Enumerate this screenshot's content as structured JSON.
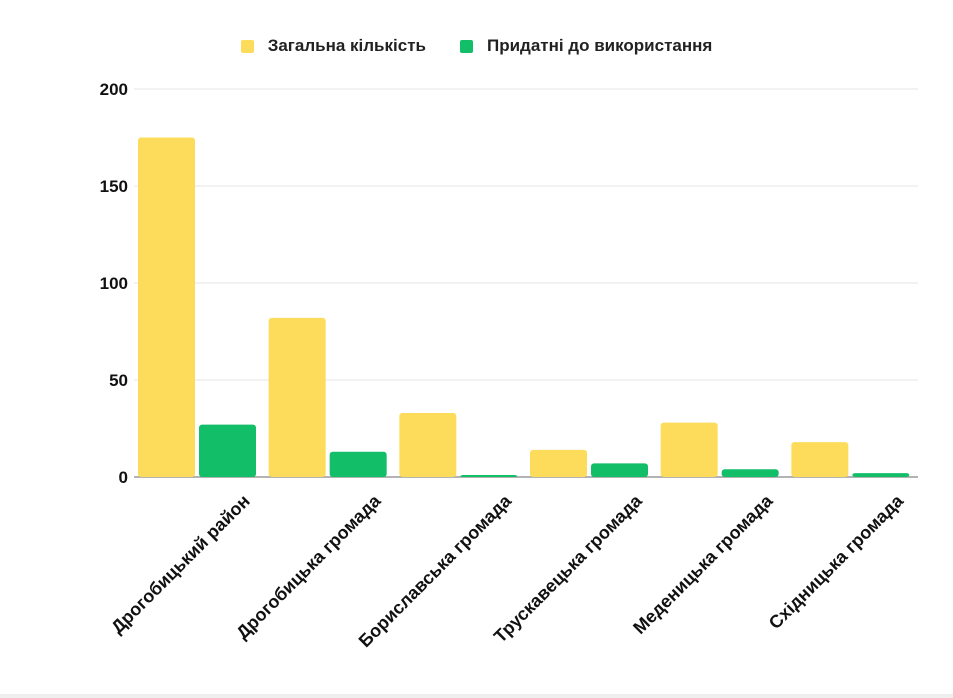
{
  "chart_data": {
    "type": "bar",
    "categories": [
      "Дрогобицький район",
      "Дрогобицька громада",
      "Бориславська громада",
      "Трускавецька громада",
      "Меденицька громада",
      "Східницька громада"
    ],
    "series": [
      {
        "name": "Загальна кількість",
        "color": "#FEDC5B",
        "values": [
          175,
          82,
          33,
          14,
          28,
          18
        ]
      },
      {
        "name": "Придатні до використання",
        "color": "#13BE69",
        "values": [
          27,
          13,
          1,
          7,
          4,
          2
        ]
      }
    ],
    "yticks": [
      "0",
      "50",
      "100",
      "150",
      "200"
    ],
    "ylim": [
      0,
      200
    ],
    "grid": true,
    "legend_position": "top-center",
    "gridline_color": "#e4e4e4",
    "axis_color": "#9a9a9a"
  }
}
